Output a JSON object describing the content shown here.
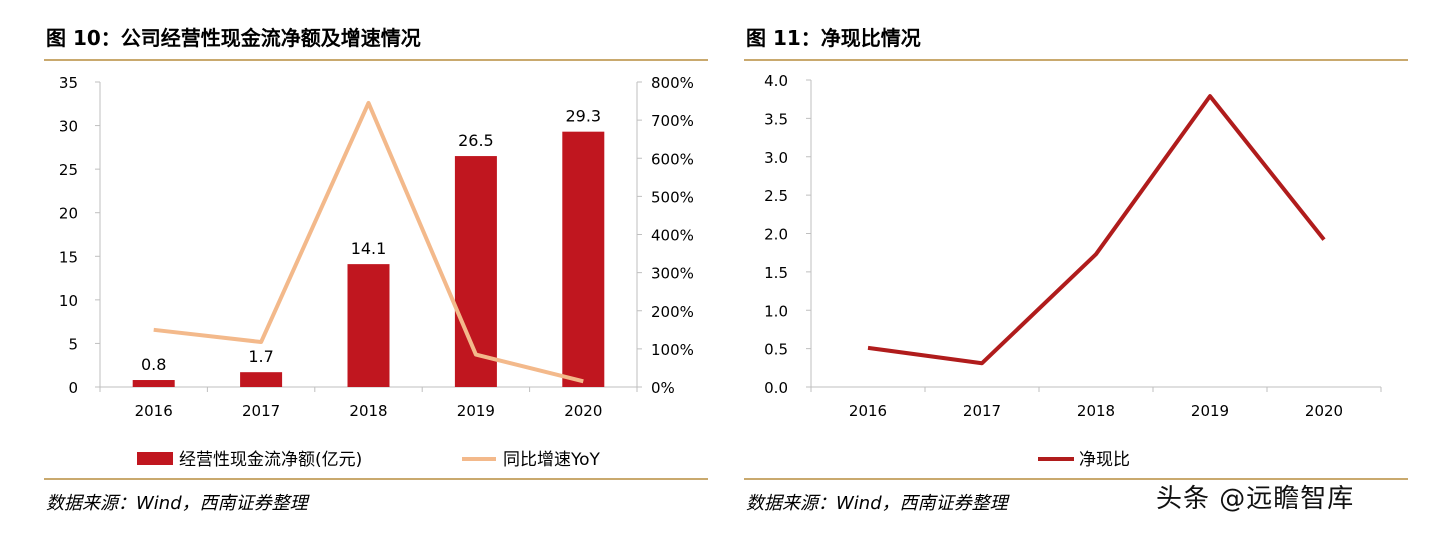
{
  "charts": [
    {
      "figure_title": "图 10：公司经营性现金流净额及增速情况",
      "source": "数据来源：Wind，西南证券整理",
      "legend": [
        "经营性现金流净额(亿元)",
        "同比增速YoY"
      ]
    },
    {
      "figure_title": "图 11：净现比情况",
      "source": "数据来源：Wind，西南证券整理",
      "legend": [
        "净现比"
      ]
    }
  ],
  "watermark": "头条 @远瞻智库",
  "colors": {
    "bar": "#c0161f",
    "yoy_line": "#f3b98b",
    "ratio_line": "#b01c1c",
    "rule": "#c9a96e"
  },
  "chart_data": [
    {
      "type": "bar",
      "categories": [
        "2016",
        "2017",
        "2018",
        "2019",
        "2020"
      ],
      "series": [
        {
          "name": "经营性现金流净额(亿元)",
          "type": "bar",
          "axis": "left",
          "values": [
            0.8,
            1.7,
            14.1,
            26.5,
            29.3
          ],
          "labels": [
            "0.8",
            "1.7",
            "14.1",
            "26.5",
            "29.3"
          ]
        },
        {
          "name": "同比增速YoY",
          "type": "line",
          "axis": "right",
          "values": [
            150,
            118,
            745,
            85,
            15
          ]
        }
      ],
      "ylim": [
        0,
        35
      ],
      "yticks": [
        "0",
        "5",
        "10",
        "15",
        "20",
        "25",
        "30",
        "35"
      ],
      "y2lim": [
        0,
        800
      ],
      "y2ticks": [
        "0%",
        "100%",
        "200%",
        "300%",
        "400%",
        "500%",
        "600%",
        "700%",
        "800%"
      ],
      "legend_position": "bottom"
    },
    {
      "type": "line",
      "categories": [
        "2016",
        "2017",
        "2018",
        "2019",
        "2020"
      ],
      "series": [
        {
          "name": "净现比",
          "values": [
            0.51,
            0.31,
            1.73,
            3.79,
            1.92
          ]
        }
      ],
      "ylim": [
        0,
        4
      ],
      "yticks": [
        "0.0",
        "0.5",
        "1.0",
        "1.5",
        "2.0",
        "2.5",
        "3.0",
        "3.5",
        "4.0"
      ],
      "legend_position": "bottom"
    }
  ]
}
